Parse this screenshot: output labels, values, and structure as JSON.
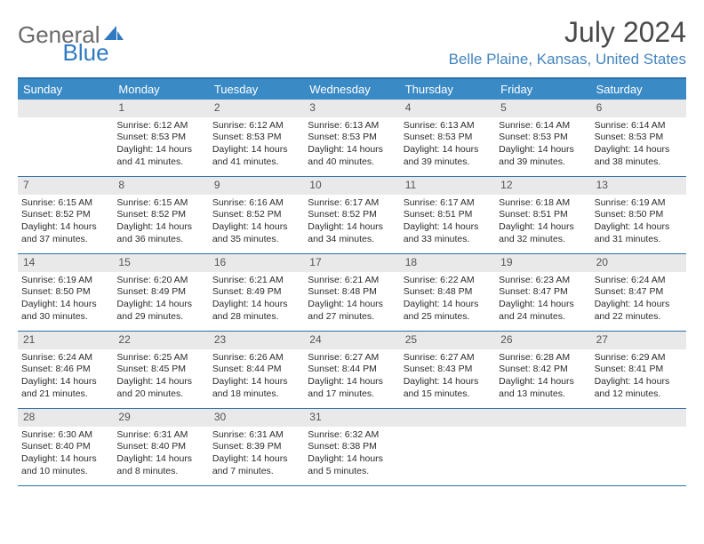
{
  "logo": {
    "general": "General",
    "blue": "Blue"
  },
  "title": "July 2024",
  "location": "Belle Plaine, Kansas, United States",
  "dayNames": [
    "Sunday",
    "Monday",
    "Tuesday",
    "Wednesday",
    "Thursday",
    "Friday",
    "Saturday"
  ],
  "colors": {
    "headerBar": "#3a8ac6",
    "borderLine": "#2d6fa8",
    "dayNumBg": "#e9e9e9",
    "locationText": "#4384bd",
    "logoBlue": "#2f7ac0"
  },
  "weeks": [
    [
      {
        "empty": true
      },
      {
        "n": "1",
        "sr": "Sunrise: 6:12 AM",
        "ss": "Sunset: 8:53 PM",
        "dl": "Daylight: 14 hours and 41 minutes."
      },
      {
        "n": "2",
        "sr": "Sunrise: 6:12 AM",
        "ss": "Sunset: 8:53 PM",
        "dl": "Daylight: 14 hours and 41 minutes."
      },
      {
        "n": "3",
        "sr": "Sunrise: 6:13 AM",
        "ss": "Sunset: 8:53 PM",
        "dl": "Daylight: 14 hours and 40 minutes."
      },
      {
        "n": "4",
        "sr": "Sunrise: 6:13 AM",
        "ss": "Sunset: 8:53 PM",
        "dl": "Daylight: 14 hours and 39 minutes."
      },
      {
        "n": "5",
        "sr": "Sunrise: 6:14 AM",
        "ss": "Sunset: 8:53 PM",
        "dl": "Daylight: 14 hours and 39 minutes."
      },
      {
        "n": "6",
        "sr": "Sunrise: 6:14 AM",
        "ss": "Sunset: 8:53 PM",
        "dl": "Daylight: 14 hours and 38 minutes."
      }
    ],
    [
      {
        "n": "7",
        "sr": "Sunrise: 6:15 AM",
        "ss": "Sunset: 8:52 PM",
        "dl": "Daylight: 14 hours and 37 minutes."
      },
      {
        "n": "8",
        "sr": "Sunrise: 6:15 AM",
        "ss": "Sunset: 8:52 PM",
        "dl": "Daylight: 14 hours and 36 minutes."
      },
      {
        "n": "9",
        "sr": "Sunrise: 6:16 AM",
        "ss": "Sunset: 8:52 PM",
        "dl": "Daylight: 14 hours and 35 minutes."
      },
      {
        "n": "10",
        "sr": "Sunrise: 6:17 AM",
        "ss": "Sunset: 8:52 PM",
        "dl": "Daylight: 14 hours and 34 minutes."
      },
      {
        "n": "11",
        "sr": "Sunrise: 6:17 AM",
        "ss": "Sunset: 8:51 PM",
        "dl": "Daylight: 14 hours and 33 minutes."
      },
      {
        "n": "12",
        "sr": "Sunrise: 6:18 AM",
        "ss": "Sunset: 8:51 PM",
        "dl": "Daylight: 14 hours and 32 minutes."
      },
      {
        "n": "13",
        "sr": "Sunrise: 6:19 AM",
        "ss": "Sunset: 8:50 PM",
        "dl": "Daylight: 14 hours and 31 minutes."
      }
    ],
    [
      {
        "n": "14",
        "sr": "Sunrise: 6:19 AM",
        "ss": "Sunset: 8:50 PM",
        "dl": "Daylight: 14 hours and 30 minutes."
      },
      {
        "n": "15",
        "sr": "Sunrise: 6:20 AM",
        "ss": "Sunset: 8:49 PM",
        "dl": "Daylight: 14 hours and 29 minutes."
      },
      {
        "n": "16",
        "sr": "Sunrise: 6:21 AM",
        "ss": "Sunset: 8:49 PM",
        "dl": "Daylight: 14 hours and 28 minutes."
      },
      {
        "n": "17",
        "sr": "Sunrise: 6:21 AM",
        "ss": "Sunset: 8:48 PM",
        "dl": "Daylight: 14 hours and 27 minutes."
      },
      {
        "n": "18",
        "sr": "Sunrise: 6:22 AM",
        "ss": "Sunset: 8:48 PM",
        "dl": "Daylight: 14 hours and 25 minutes."
      },
      {
        "n": "19",
        "sr": "Sunrise: 6:23 AM",
        "ss": "Sunset: 8:47 PM",
        "dl": "Daylight: 14 hours and 24 minutes."
      },
      {
        "n": "20",
        "sr": "Sunrise: 6:24 AM",
        "ss": "Sunset: 8:47 PM",
        "dl": "Daylight: 14 hours and 22 minutes."
      }
    ],
    [
      {
        "n": "21",
        "sr": "Sunrise: 6:24 AM",
        "ss": "Sunset: 8:46 PM",
        "dl": "Daylight: 14 hours and 21 minutes."
      },
      {
        "n": "22",
        "sr": "Sunrise: 6:25 AM",
        "ss": "Sunset: 8:45 PM",
        "dl": "Daylight: 14 hours and 20 minutes."
      },
      {
        "n": "23",
        "sr": "Sunrise: 6:26 AM",
        "ss": "Sunset: 8:44 PM",
        "dl": "Daylight: 14 hours and 18 minutes."
      },
      {
        "n": "24",
        "sr": "Sunrise: 6:27 AM",
        "ss": "Sunset: 8:44 PM",
        "dl": "Daylight: 14 hours and 17 minutes."
      },
      {
        "n": "25",
        "sr": "Sunrise: 6:27 AM",
        "ss": "Sunset: 8:43 PM",
        "dl": "Daylight: 14 hours and 15 minutes."
      },
      {
        "n": "26",
        "sr": "Sunrise: 6:28 AM",
        "ss": "Sunset: 8:42 PM",
        "dl": "Daylight: 14 hours and 13 minutes."
      },
      {
        "n": "27",
        "sr": "Sunrise: 6:29 AM",
        "ss": "Sunset: 8:41 PM",
        "dl": "Daylight: 14 hours and 12 minutes."
      }
    ],
    [
      {
        "n": "28",
        "sr": "Sunrise: 6:30 AM",
        "ss": "Sunset: 8:40 PM",
        "dl": "Daylight: 14 hours and 10 minutes."
      },
      {
        "n": "29",
        "sr": "Sunrise: 6:31 AM",
        "ss": "Sunset: 8:40 PM",
        "dl": "Daylight: 14 hours and 8 minutes."
      },
      {
        "n": "30",
        "sr": "Sunrise: 6:31 AM",
        "ss": "Sunset: 8:39 PM",
        "dl": "Daylight: 14 hours and 7 minutes."
      },
      {
        "n": "31",
        "sr": "Sunrise: 6:32 AM",
        "ss": "Sunset: 8:38 PM",
        "dl": "Daylight: 14 hours and 5 minutes."
      },
      {
        "empty": true
      },
      {
        "empty": true
      },
      {
        "empty": true
      }
    ]
  ]
}
